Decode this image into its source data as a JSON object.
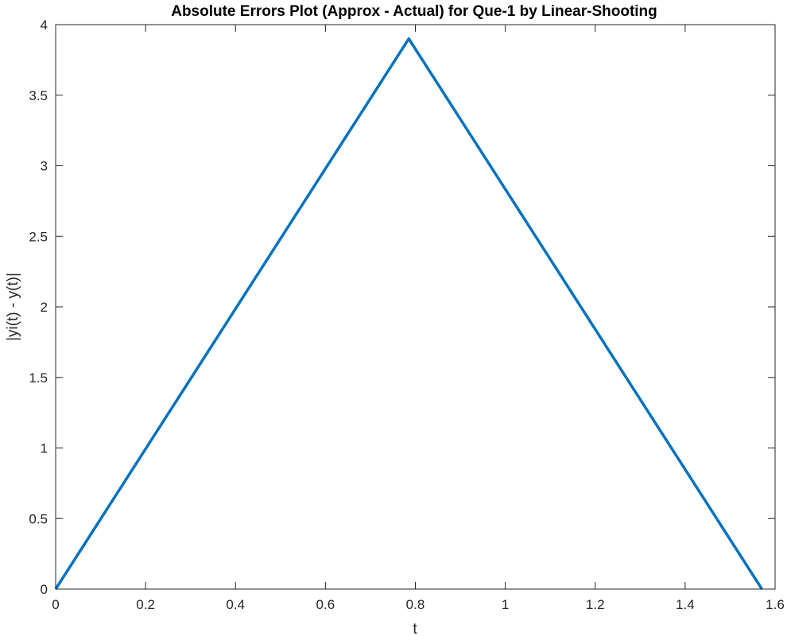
{
  "chart_data": {
    "type": "line",
    "title": "Absolute Errors Plot (Approx - Actual) for Que-1 by Linear-Shooting",
    "xlabel": "t",
    "ylabel": "|yi(t) - y(t)|",
    "xlim": [
      0,
      1.6
    ],
    "ylim": [
      0,
      4
    ],
    "x_ticks": [
      "0",
      "0.2",
      "0.4",
      "0.6",
      "0.8",
      "1",
      "1.2",
      "1.4",
      "1.6"
    ],
    "y_ticks": [
      "0",
      "0.5",
      "1",
      "1.5",
      "2",
      "2.5",
      "3",
      "3.5",
      "4"
    ],
    "grid": false,
    "series": [
      {
        "color": "#0072BD",
        "x": [
          0,
          0.7854,
          1.5708
        ],
        "y": [
          0,
          3.9,
          0
        ]
      }
    ]
  }
}
